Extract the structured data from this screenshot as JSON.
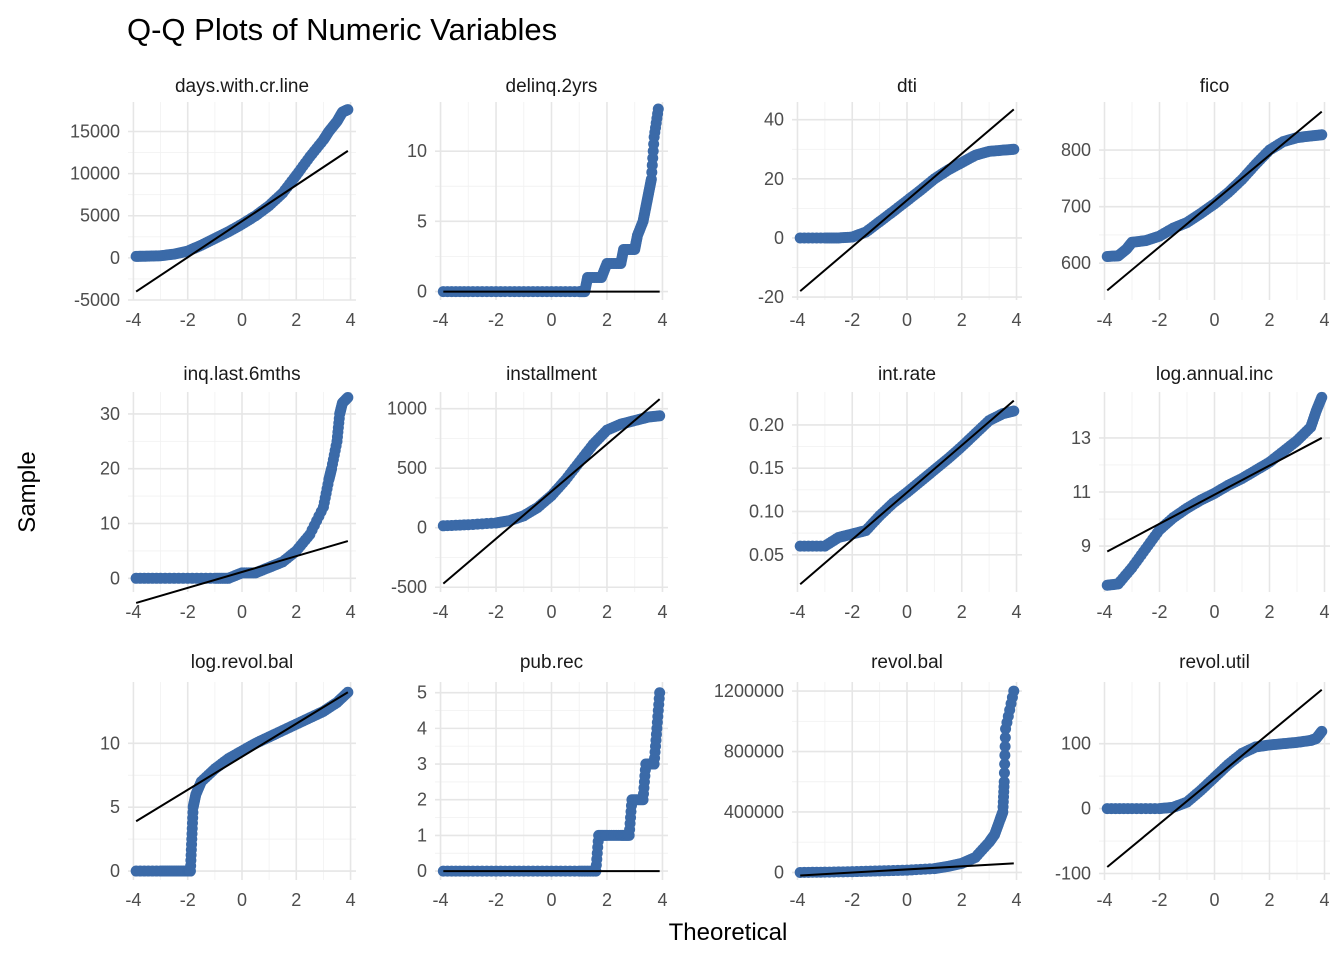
{
  "chart_data": {
    "type": "scatter",
    "title": "Q-Q Plots of Numeric Variables",
    "xlabel": "Theoretical",
    "ylabel": "Sample",
    "layout": "facet grid, 3 rows x 4 columns",
    "grid": true,
    "point_color": "#3b6aa8",
    "line_color": "#000000",
    "x_ticks": [
      "-4",
      "-2",
      "0",
      "2",
      "4"
    ],
    "panels": [
      {
        "name": "days.with.cr.line",
        "xlim": [
          -4.2,
          4.2
        ],
        "ylim": [
          -5000,
          18500
        ],
        "y_ticks": [
          -5000,
          0,
          5000,
          10000,
          15000
        ],
        "y_tick_labels": [
          "-5000",
          "0",
          "5000",
          "10000",
          "15000"
        ],
        "line": {
          "x": [
            -3.9,
            3.9
          ],
          "y": [
            -4000,
            12700
          ]
        },
        "points": [
          [
            -3.9,
            179
          ],
          [
            -3.5,
            200
          ],
          [
            -3,
            250
          ],
          [
            -2.5,
            450
          ],
          [
            -2,
            800
          ],
          [
            -1.5,
            1500
          ],
          [
            -1,
            2300
          ],
          [
            -0.5,
            3100
          ],
          [
            0,
            4000
          ],
          [
            0.5,
            5000
          ],
          [
            1,
            6200
          ],
          [
            1.5,
            7700
          ],
          [
            2,
            9800
          ],
          [
            2.5,
            12000
          ],
          [
            3,
            14000
          ],
          [
            3.2,
            15000
          ],
          [
            3.5,
            16200
          ],
          [
            3.7,
            17300
          ],
          [
            3.9,
            17600
          ]
        ]
      },
      {
        "name": "delinq.2yrs",
        "xlim": [
          -4.2,
          4.2
        ],
        "ylim": [
          -0.6,
          13.5
        ],
        "y_ticks": [
          0,
          5,
          10
        ],
        "y_tick_labels": [
          "0",
          "5",
          "10"
        ],
        "line": {
          "x": [
            -3.9,
            3.9
          ],
          "y": [
            0,
            0
          ]
        },
        "points": [
          [
            -3.9,
            0
          ],
          [
            -3,
            0
          ],
          [
            -2,
            0
          ],
          [
            -1,
            0
          ],
          [
            0,
            0
          ],
          [
            1,
            0
          ],
          [
            1.2,
            0
          ],
          [
            1.3,
            1
          ],
          [
            1.8,
            1
          ],
          [
            2,
            2
          ],
          [
            2.5,
            2
          ],
          [
            2.6,
            3
          ],
          [
            3,
            3
          ],
          [
            3.1,
            4
          ],
          [
            3.3,
            5
          ],
          [
            3.4,
            6
          ],
          [
            3.5,
            7
          ],
          [
            3.6,
            8
          ],
          [
            3.7,
            11
          ],
          [
            3.85,
            13
          ]
        ]
      },
      {
        "name": "dti",
        "xlim": [
          -4.2,
          4.2
        ],
        "ylim": [
          -21,
          46
        ],
        "y_ticks": [
          -20,
          0,
          20,
          40
        ],
        "y_tick_labels": [
          "-20",
          "0",
          "20",
          "40"
        ],
        "line": {
          "x": [
            -3.9,
            3.9
          ],
          "y": [
            -18,
            43.5
          ]
        },
        "points": [
          [
            -3.9,
            0
          ],
          [
            -3,
            0
          ],
          [
            -2.5,
            0
          ],
          [
            -2,
            0.3
          ],
          [
            -1.5,
            2
          ],
          [
            -1,
            5.5
          ],
          [
            -0.5,
            9
          ],
          [
            0,
            12.6
          ],
          [
            0.5,
            16.2
          ],
          [
            1,
            20
          ],
          [
            1.5,
            23
          ],
          [
            2,
            25.5
          ],
          [
            2.5,
            28
          ],
          [
            3,
            29.3
          ],
          [
            3.5,
            29.7
          ],
          [
            3.9,
            30
          ]
        ]
      },
      {
        "name": "fico",
        "xlim": [
          -4.2,
          4.2
        ],
        "ylim": [
          535,
          885
        ],
        "y_ticks": [
          600,
          700,
          800
        ],
        "y_tick_labels": [
          "600",
          "700",
          "800"
        ],
        "line": {
          "x": [
            -3.9,
            3.9
          ],
          "y": [
            552,
            868
          ]
        },
        "points": [
          [
            -3.9,
            612
          ],
          [
            -3.5,
            613
          ],
          [
            -3.2,
            625
          ],
          [
            -3,
            637
          ],
          [
            -2.5,
            640
          ],
          [
            -2,
            648
          ],
          [
            -1.5,
            662
          ],
          [
            -1,
            672
          ],
          [
            -0.5,
            688
          ],
          [
            0,
            705
          ],
          [
            0.5,
            725
          ],
          [
            1,
            748
          ],
          [
            1.5,
            775
          ],
          [
            2,
            800
          ],
          [
            2.5,
            815
          ],
          [
            3,
            822
          ],
          [
            3.5,
            825
          ],
          [
            3.9,
            827
          ]
        ]
      },
      {
        "name": "inq.last.6mths",
        "xlim": [
          -4.2,
          4.2
        ],
        "ylim": [
          -2.5,
          34
        ],
        "y_ticks": [
          0,
          10,
          20,
          30
        ],
        "y_tick_labels": [
          "0",
          "10",
          "20",
          "30"
        ],
        "line": {
          "x": [
            -3.9,
            3.9
          ],
          "y": [
            -4.5,
            6.8
          ]
        },
        "points": [
          [
            -3.9,
            0
          ],
          [
            -3,
            0
          ],
          [
            -2,
            0
          ],
          [
            -1,
            0
          ],
          [
            -0.5,
            0
          ],
          [
            0,
            1
          ],
          [
            0.5,
            1
          ],
          [
            1,
            2
          ],
          [
            1.5,
            3
          ],
          [
            2,
            5
          ],
          [
            2.5,
            8
          ],
          [
            3,
            13
          ],
          [
            3.2,
            18
          ],
          [
            3.3,
            20
          ],
          [
            3.5,
            25
          ],
          [
            3.6,
            30
          ],
          [
            3.7,
            32
          ],
          [
            3.9,
            33
          ]
        ]
      },
      {
        "name": "installment",
        "xlim": [
          -4.2,
          4.2
        ],
        "ylim": [
          -540,
          1140
        ],
        "y_ticks": [
          -500,
          0,
          500,
          1000
        ],
        "y_tick_labels": [
          "-500",
          "0",
          "500",
          "1000"
        ],
        "line": {
          "x": [
            -3.9,
            3.9
          ],
          "y": [
            -470,
            1080
          ]
        },
        "points": [
          [
            -3.9,
            16
          ],
          [
            -3,
            25
          ],
          [
            -2,
            40
          ],
          [
            -1.5,
            60
          ],
          [
            -1,
            100
          ],
          [
            -0.5,
            170
          ],
          [
            0,
            270
          ],
          [
            0.5,
            400
          ],
          [
            1,
            550
          ],
          [
            1.5,
            700
          ],
          [
            2,
            820
          ],
          [
            2.5,
            870
          ],
          [
            3,
            900
          ],
          [
            3.5,
            930
          ],
          [
            3.9,
            940
          ]
        ]
      },
      {
        "name": "int.rate",
        "xlim": [
          -4.2,
          4.2
        ],
        "ylim": [
          0.007,
          0.238
        ],
        "y_ticks": [
          0.05,
          0.1,
          0.15,
          0.2
        ],
        "y_tick_labels": [
          "0.05",
          "0.10",
          "0.15",
          "0.20"
        ],
        "line": {
          "x": [
            -3.9,
            3.9
          ],
          "y": [
            0.016,
            0.228
          ]
        },
        "points": [
          [
            -3.9,
            0.06
          ],
          [
            -3,
            0.06
          ],
          [
            -2.5,
            0.07
          ],
          [
            -2,
            0.074
          ],
          [
            -1.5,
            0.078
          ],
          [
            -1,
            0.095
          ],
          [
            -0.5,
            0.11
          ],
          [
            0,
            0.122
          ],
          [
            0.5,
            0.135
          ],
          [
            1,
            0.148
          ],
          [
            1.5,
            0.161
          ],
          [
            2,
            0.175
          ],
          [
            2.5,
            0.19
          ],
          [
            3,
            0.205
          ],
          [
            3.5,
            0.213
          ],
          [
            3.9,
            0.216
          ]
        ]
      },
      {
        "name": "log.annual.inc",
        "xlim": [
          -4.2,
          4.2
        ],
        "ylim": [
          7.3,
          14.7
        ],
        "y_ticks": [
          9,
          11,
          13
        ],
        "y_tick_labels": [
          "9",
          "11",
          "13"
        ],
        "line": {
          "x": [
            -3.9,
            3.9
          ],
          "y": [
            8.8,
            13
          ]
        },
        "points": [
          [
            -3.9,
            7.55
          ],
          [
            -3.5,
            7.6
          ],
          [
            -3,
            8.2
          ],
          [
            -2.5,
            8.9
          ],
          [
            -2,
            9.6
          ],
          [
            -1.5,
            10.05
          ],
          [
            -1,
            10.4
          ],
          [
            -0.5,
            10.7
          ],
          [
            0,
            10.95
          ],
          [
            0.5,
            11.25
          ],
          [
            1,
            11.5
          ],
          [
            1.5,
            11.8
          ],
          [
            2,
            12.1
          ],
          [
            2.5,
            12.5
          ],
          [
            3,
            12.9
          ],
          [
            3.5,
            13.4
          ],
          [
            3.7,
            14
          ],
          [
            3.9,
            14.5
          ]
        ]
      },
      {
        "name": "log.revol.bal",
        "xlim": [
          -4.2,
          4.2
        ],
        "ylim": [
          -0.7,
          14.8
        ],
        "y_ticks": [
          0,
          5,
          10
        ],
        "y_tick_labels": [
          "0",
          "5",
          "10"
        ],
        "line": {
          "x": [
            -3.9,
            3.9
          ],
          "y": [
            3.9,
            14
          ]
        },
        "points": [
          [
            -3.9,
            0
          ],
          [
            -3,
            0
          ],
          [
            -2.5,
            0
          ],
          [
            -2,
            0
          ],
          [
            -1.9,
            0
          ],
          [
            -1.85,
            2.5
          ],
          [
            -1.8,
            5
          ],
          [
            -1.7,
            6
          ],
          [
            -1.5,
            7
          ],
          [
            -1,
            8
          ],
          [
            -0.5,
            8.8
          ],
          [
            0,
            9.4
          ],
          [
            0.5,
            10
          ],
          [
            1,
            10.5
          ],
          [
            1.5,
            11
          ],
          [
            2,
            11.5
          ],
          [
            2.5,
            12
          ],
          [
            3,
            12.5
          ],
          [
            3.5,
            13.2
          ],
          [
            3.9,
            14
          ]
        ]
      },
      {
        "name": "pub.rec",
        "xlim": [
          -4.2,
          4.2
        ],
        "ylim": [
          -0.25,
          5.3
        ],
        "y_ticks": [
          0,
          1,
          2,
          3,
          4,
          5
        ],
        "y_tick_labels": [
          "0",
          "1",
          "2",
          "3",
          "4",
          "5"
        ],
        "line": {
          "x": [
            -3.9,
            3.9
          ],
          "y": [
            0,
            0
          ]
        },
        "points": [
          [
            -3.9,
            0
          ],
          [
            -3,
            0
          ],
          [
            -2,
            0
          ],
          [
            -1,
            0
          ],
          [
            0,
            0
          ],
          [
            1,
            0
          ],
          [
            1.6,
            0
          ],
          [
            1.7,
            1
          ],
          [
            2,
            1
          ],
          [
            2.5,
            1
          ],
          [
            2.8,
            1
          ],
          [
            2.9,
            2
          ],
          [
            3.3,
            2
          ],
          [
            3.4,
            3
          ],
          [
            3.7,
            3
          ],
          [
            3.8,
            4
          ],
          [
            3.9,
            5
          ]
        ]
      },
      {
        "name": "revol.bal",
        "xlim": [
          -4.2,
          4.2
        ],
        "ylim": [
          -50000,
          1260000
        ],
        "y_ticks": [
          0,
          400000,
          800000,
          1200000
        ],
        "y_tick_labels": [
          "0",
          "400000",
          "800000",
          "1200000"
        ],
        "line": {
          "x": [
            -3.9,
            3.9
          ],
          "y": [
            -20000,
            60000
          ]
        },
        "points": [
          [
            -3.9,
            0
          ],
          [
            -3,
            2000
          ],
          [
            -2,
            5000
          ],
          [
            -1,
            10000
          ],
          [
            0,
            15000
          ],
          [
            1,
            25000
          ],
          [
            1.5,
            40000
          ],
          [
            2,
            60000
          ],
          [
            2.5,
            100000
          ],
          [
            3,
            200000
          ],
          [
            3.2,
            250000
          ],
          [
            3.4,
            350000
          ],
          [
            3.5,
            400000
          ],
          [
            3.55,
            600000
          ],
          [
            3.6,
            950000
          ],
          [
            3.9,
            1200000
          ]
        ]
      },
      {
        "name": "revol.util",
        "xlim": [
          -4.2,
          4.2
        ],
        "ylim": [
          -110,
          195
        ],
        "y_ticks": [
          -100,
          0,
          100
        ],
        "y_tick_labels": [
          "-100",
          "0",
          "100"
        ],
        "line": {
          "x": [
            -3.9,
            3.9
          ],
          "y": [
            -90,
            183
          ]
        },
        "points": [
          [
            -3.9,
            0
          ],
          [
            -3,
            0
          ],
          [
            -2,
            0
          ],
          [
            -1.5,
            2
          ],
          [
            -1,
            10
          ],
          [
            -0.5,
            28
          ],
          [
            0,
            48
          ],
          [
            0.5,
            68
          ],
          [
            1,
            85
          ],
          [
            1.5,
            95
          ],
          [
            2,
            98
          ],
          [
            2.5,
            100
          ],
          [
            3,
            102
          ],
          [
            3.5,
            105
          ],
          [
            3.7,
            108
          ],
          [
            3.9,
            119
          ]
        ]
      }
    ]
  }
}
